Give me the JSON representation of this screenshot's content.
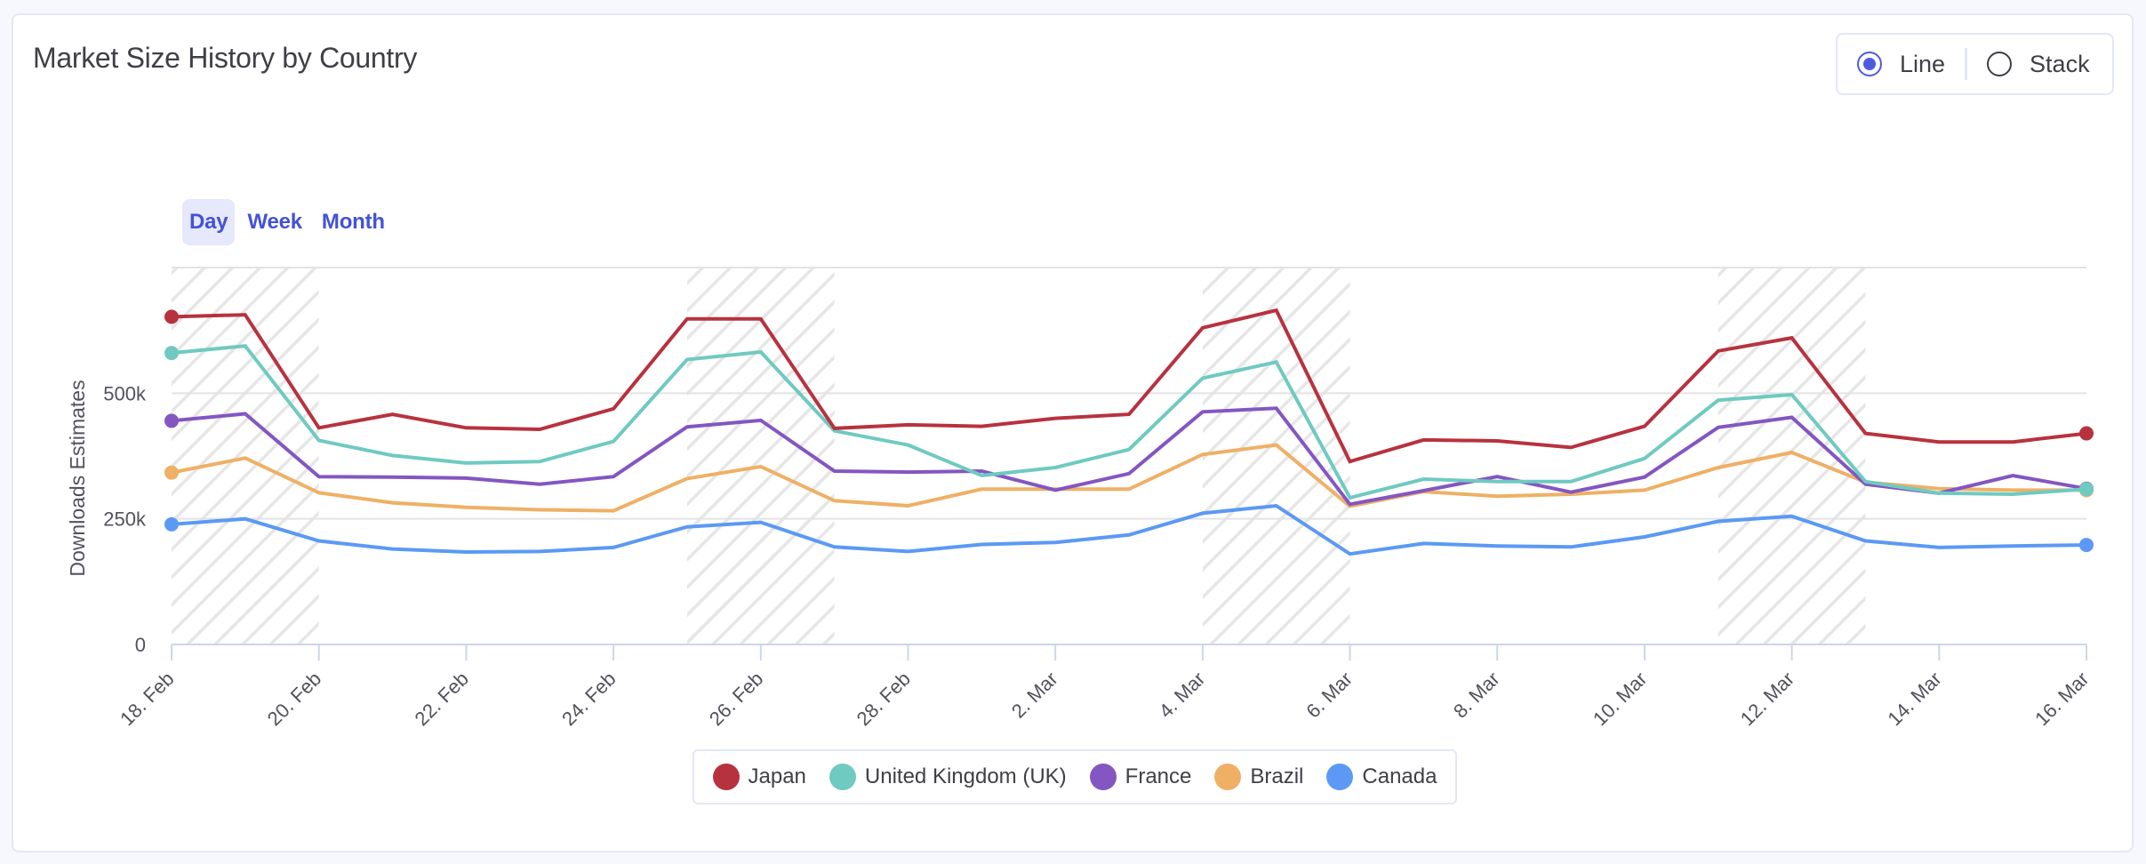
{
  "header": {
    "title": "Market Size History by Country",
    "mode_options": [
      {
        "label": "Line",
        "selected": true
      },
      {
        "label": "Stack",
        "selected": false
      }
    ]
  },
  "range_tabs": [
    {
      "label": "Day",
      "active": true
    },
    {
      "label": "Week",
      "active": false
    },
    {
      "label": "Month",
      "active": false
    }
  ],
  "colors": {
    "Japan": "#b7323f",
    "United Kingdom (UK)": "#6fcac1",
    "France": "#8456c1",
    "Brazil": "#efb065",
    "Canada": "#5b99f4",
    "accent": "#4d5be0"
  },
  "chart_data": {
    "type": "line",
    "title": "Market Size History by Country",
    "xlabel": "",
    "ylabel": "Downloads Estimates",
    "ylim": [
      0,
      750000
    ],
    "yticks": [
      {
        "value": 0,
        "label": "0"
      },
      {
        "value": 250000,
        "label": "250k"
      },
      {
        "value": 500000,
        "label": "500k"
      }
    ],
    "x": [
      "18 Feb",
      "19 Feb",
      "20 Feb",
      "21 Feb",
      "22 Feb",
      "23 Feb",
      "24 Feb",
      "25 Feb",
      "26 Feb",
      "27 Feb",
      "28 Feb",
      "1 Mar",
      "2 Mar",
      "3 Mar",
      "4 Mar",
      "5 Mar",
      "6 Mar",
      "7 Mar",
      "8 Mar",
      "9 Mar",
      "10 Mar",
      "11 Mar",
      "12 Mar",
      "13 Mar",
      "14 Mar",
      "15 Mar",
      "16 Mar"
    ],
    "xtick_labels": [
      {
        "index": 0,
        "label": "18. Feb"
      },
      {
        "index": 2,
        "label": "20. Feb"
      },
      {
        "index": 4,
        "label": "22. Feb"
      },
      {
        "index": 6,
        "label": "24. Feb"
      },
      {
        "index": 8,
        "label": "26. Feb"
      },
      {
        "index": 10,
        "label": "28. Feb"
      },
      {
        "index": 12,
        "label": "2. Mar"
      },
      {
        "index": 14,
        "label": "4. Mar"
      },
      {
        "index": 16,
        "label": "6. Mar"
      },
      {
        "index": 18,
        "label": "8. Mar"
      },
      {
        "index": 20,
        "label": "10. Mar"
      },
      {
        "index": 22,
        "label": "12. Mar"
      },
      {
        "index": 24,
        "label": "14. Mar"
      },
      {
        "index": 26,
        "label": "16. Mar"
      }
    ],
    "weekend_bands": [
      [
        0,
        2
      ],
      [
        7,
        9
      ],
      [
        14,
        16
      ],
      [
        21,
        23
      ]
    ],
    "grid": true,
    "legend_position": "bottom",
    "series": [
      {
        "name": "Japan",
        "values": [
          652000,
          656000,
          431000,
          458000,
          431000,
          428000,
          469000,
          648000,
          648000,
          430000,
          437000,
          434000,
          450000,
          458000,
          630000,
          665000,
          364000,
          407000,
          405000,
          392000,
          434000,
          584000,
          610000,
          420000,
          403000,
          403000,
          420000
        ]
      },
      {
        "name": "United Kingdom (UK)",
        "values": [
          580000,
          594000,
          406000,
          376000,
          361000,
          364000,
          404000,
          567000,
          582000,
          425000,
          397000,
          336000,
          352000,
          388000,
          530000,
          562000,
          292000,
          329000,
          324000,
          324000,
          370000,
          486000,
          497000,
          324000,
          301000,
          299000,
          309000
        ]
      },
      {
        "name": "France",
        "values": [
          445000,
          459000,
          334000,
          333000,
          331000,
          319000,
          334000,
          433000,
          446000,
          345000,
          343000,
          345000,
          307000,
          340000,
          463000,
          470000,
          279000,
          306000,
          334000,
          303000,
          333000,
          432000,
          452000,
          319000,
          301000,
          336000,
          310000
        ]
      },
      {
        "name": "Brazil",
        "values": [
          342000,
          371000,
          302000,
          282000,
          273000,
          268000,
          266000,
          330000,
          354000,
          286000,
          276000,
          309000,
          309000,
          309000,
          378000,
          397000,
          275000,
          304000,
          295000,
          299000,
          307000,
          352000,
          382000,
          323000,
          310000,
          307000,
          307000
        ]
      },
      {
        "name": "Canada",
        "values": [
          239000,
          250000,
          206000,
          190000,
          184000,
          185000,
          193000,
          234000,
          243000,
          194000,
          185000,
          199000,
          203000,
          218000,
          261000,
          276000,
          180000,
          201000,
          196000,
          194000,
          214000,
          245000,
          255000,
          206000,
          193000,
          196000,
          198000
        ]
      }
    ]
  }
}
